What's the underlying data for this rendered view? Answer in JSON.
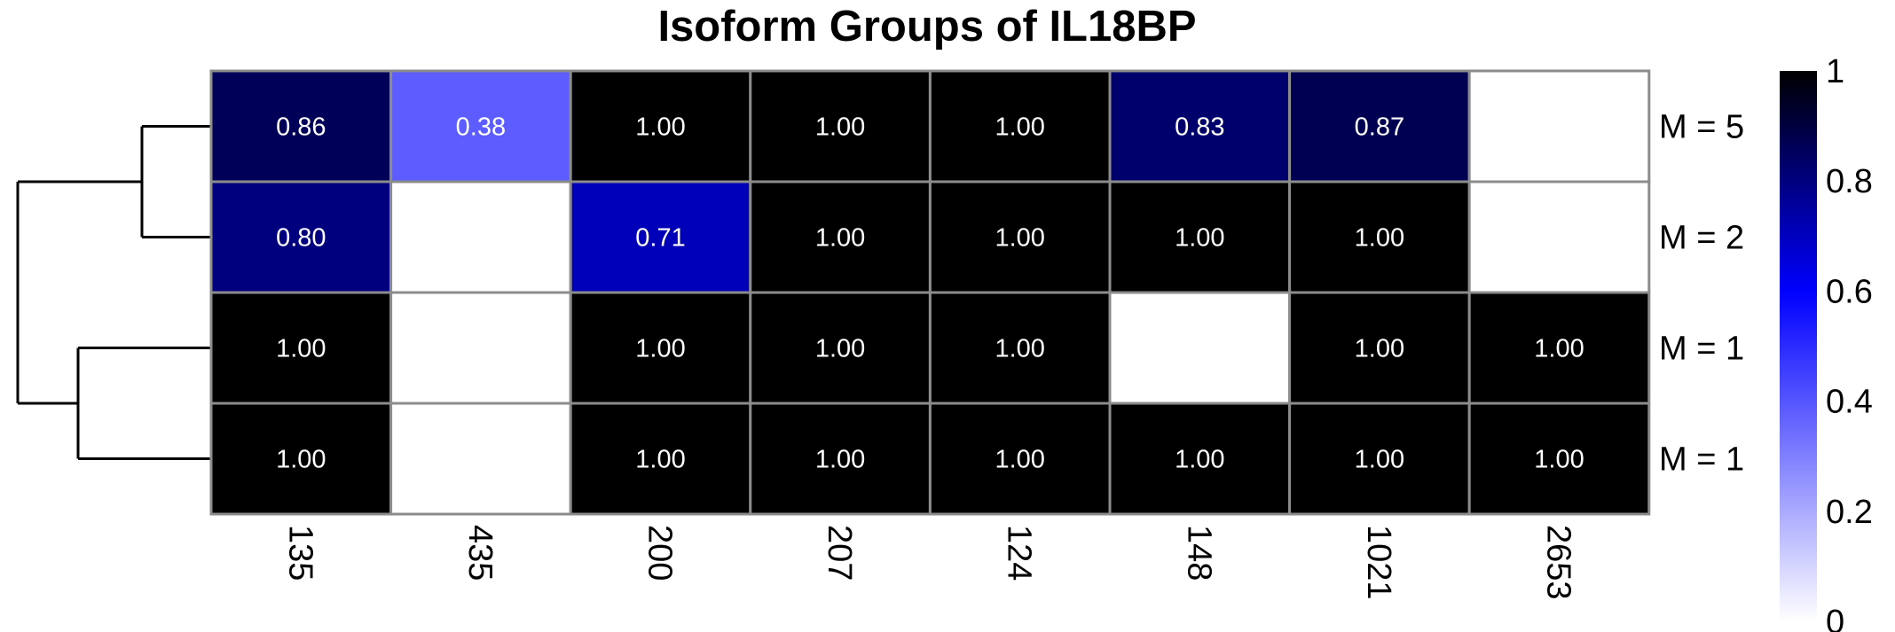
{
  "chart_data": {
    "type": "heatmap",
    "title": "Isoform Groups of IL18BP",
    "columns": [
      "135",
      "435",
      "200",
      "207",
      "124",
      "148",
      "1021",
      "2653"
    ],
    "rows": [
      "M = 5",
      "M = 2",
      "M = 1",
      "M = 1"
    ],
    "values": [
      [
        0.86,
        0.38,
        1.0,
        1.0,
        1.0,
        0.83,
        0.87,
        null
      ],
      [
        0.8,
        null,
        0.71,
        1.0,
        1.0,
        1.0,
        1.0,
        null
      ],
      [
        1.0,
        null,
        1.0,
        1.0,
        1.0,
        null,
        1.0,
        1.0
      ],
      [
        1.0,
        null,
        1.0,
        1.0,
        1.0,
        1.0,
        1.0,
        1.0
      ]
    ],
    "labels": [
      [
        "0.86",
        "0.38",
        "1.00",
        "1.00",
        "1.00",
        "0.83",
        "0.87",
        ""
      ],
      [
        "0.80",
        "",
        "0.71",
        "1.00",
        "1.00",
        "1.00",
        "1.00",
        ""
      ],
      [
        "1.00",
        "",
        "1.00",
        "1.00",
        "1.00",
        "",
        "1.00",
        "1.00"
      ],
      [
        "1.00",
        "",
        "1.00",
        "1.00",
        "1.00",
        "1.00",
        "1.00",
        "1.00"
      ]
    ],
    "color_scale": {
      "min": 0,
      "max": 1,
      "colors": [
        "#ffffff",
        "#0000ff",
        "#000000"
      ],
      "ticks": [
        "0",
        "0.2",
        "0.4",
        "0.6",
        "0.8",
        "1"
      ]
    },
    "dendrogram": "rows",
    "legend_placement": "right"
  }
}
